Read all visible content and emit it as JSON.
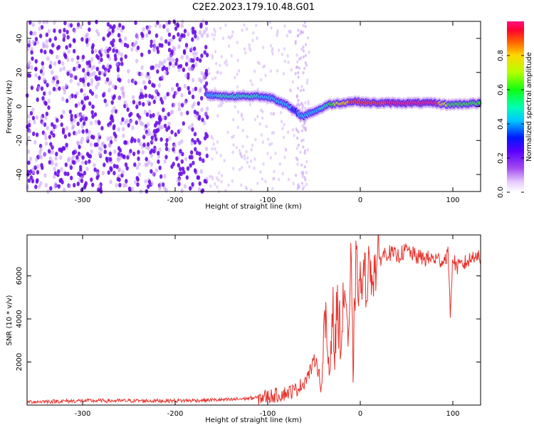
{
  "title": "C2E2.2023.179.10.48.G01",
  "colors": {
    "snr_line": "#e8322c",
    "background": "#ffffff",
    "noise": "#7a1fe8"
  },
  "chart_data": [
    {
      "type": "heatmap",
      "title": "",
      "xlabel": "Height of straight line (km)",
      "ylabel": "Frequency (Hz)",
      "xlim": [
        -360,
        130
      ],
      "ylim": [
        -50,
        50
      ],
      "x_ticks": [
        -300,
        -200,
        -100,
        0,
        100
      ],
      "y_ticks": [
        -40,
        -20,
        0,
        20,
        40
      ],
      "x_tick_labels": [
        "-300",
        "-200",
        "-100",
        "0",
        "100"
      ],
      "y_tick_labels": [
        "-40",
        "-20",
        "0",
        "20",
        "40"
      ],
      "colorbar": {
        "label": "Normalized spectral amplitude",
        "range": [
          0,
          1
        ],
        "ticks": [
          0,
          0.2,
          0.4,
          0.6,
          0.8
        ],
        "tick_labels": [
          "0.0",
          "0.2",
          "0.4",
          "0.6",
          "0.8"
        ]
      },
      "signal_ridge": {
        "height_km": [
          -165,
          -150,
          -130,
          -110,
          -95,
          -80,
          -70,
          -62,
          -55,
          -45,
          -35,
          -20,
          -5,
          10,
          40,
          80,
          95,
          130
        ],
        "frequency_hz": [
          7,
          6,
          6,
          6,
          5,
          1,
          -3,
          -6,
          -4,
          -2,
          1,
          2,
          3,
          2,
          2,
          2,
          1,
          2
        ],
        "amplitude": [
          0.35,
          0.45,
          0.45,
          0.42,
          0.4,
          0.35,
          0.3,
          0.35,
          0.35,
          0.4,
          0.5,
          0.75,
          0.85,
          0.85,
          0.9,
          0.9,
          0.6,
          0.55
        ]
      },
      "noise_region_km": [
        -360,
        -165
      ]
    },
    {
      "type": "line",
      "title": "",
      "xlabel": "Height of straight line (km)",
      "ylabel": "SNR (10 * v/v)",
      "xlim": [
        -360,
        130
      ],
      "ylim": [
        0,
        7900
      ],
      "x_ticks": [
        -300,
        -200,
        -100,
        0,
        100
      ],
      "y_ticks": [
        2000,
        4000,
        6000
      ],
      "x_tick_labels": [
        "-300",
        "-200",
        "-100",
        "0",
        "100"
      ],
      "y_tick_labels": [
        "2000",
        "4000",
        "6000"
      ],
      "series": [
        {
          "name": "SNR",
          "x": [
            -360,
            -300,
            -200,
            -140,
            -110,
            -100,
            -85,
            -70,
            -62,
            -55,
            -48,
            -42,
            -38,
            -33,
            -30,
            -28,
            -25,
            -20,
            -17,
            -12,
            -10,
            -8,
            -5,
            0,
            5,
            10,
            15,
            20,
            25,
            30,
            40,
            50,
            60,
            70,
            80,
            90,
            95,
            97,
            100,
            105,
            110,
            120,
            125,
            130
          ],
          "y": [
            150,
            200,
            200,
            250,
            350,
            400,
            500,
            700,
            1000,
            1500,
            2200,
            800,
            3800,
            1500,
            5000,
            2200,
            4500,
            3000,
            5800,
            2500,
            7000,
            1500,
            6300,
            5500,
            5800,
            6300,
            6300,
            6700,
            7000,
            7100,
            6900,
            7200,
            6900,
            6800,
            6800,
            6700,
            7100,
            4200,
            6800,
            6400,
            6500,
            6800,
            7100,
            6600
          ]
        }
      ]
    }
  ]
}
